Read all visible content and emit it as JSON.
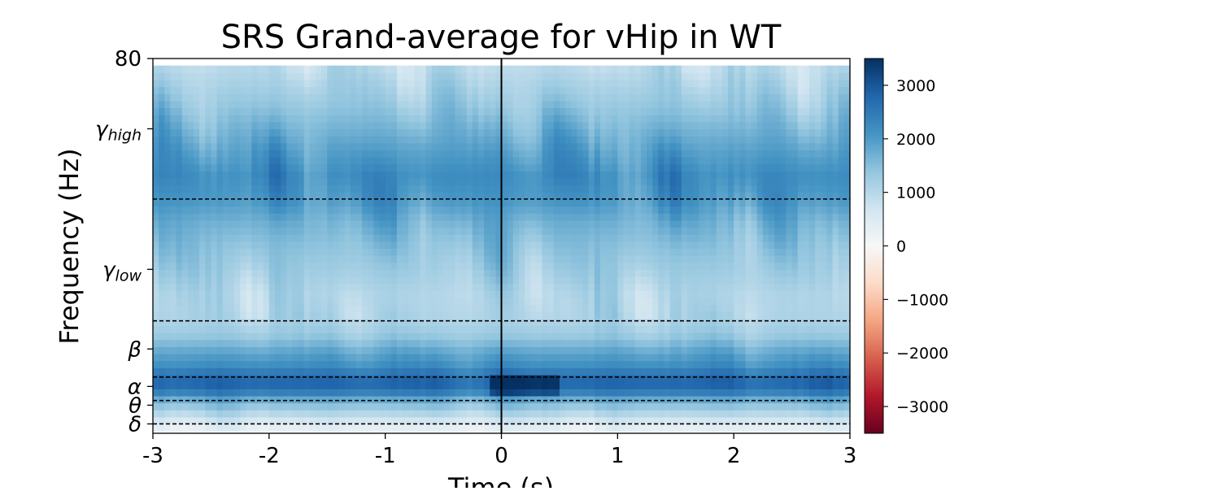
{
  "chart_data": {
    "type": "heatmap",
    "title": "SRS Grand-average for vHip in WT",
    "xlabel": "Time (s)",
    "ylabel": "Frequency (Hz)",
    "xlim": [
      -3,
      3
    ],
    "ylim": [
      0,
      80
    ],
    "x_ticks": [
      {
        "value": -3,
        "label": "-3"
      },
      {
        "value": -2,
        "label": "-2"
      },
      {
        "value": -1,
        "label": "-1"
      },
      {
        "value": 0,
        "label": "0"
      },
      {
        "value": 1,
        "label": "1"
      },
      {
        "value": 2,
        "label": "2"
      },
      {
        "value": 3,
        "label": "3"
      }
    ],
    "y_ticks": [
      {
        "value": 2,
        "label": "δ"
      },
      {
        "value": 6,
        "label": "θ"
      },
      {
        "value": 10,
        "label": "α"
      },
      {
        "value": 18,
        "label": "β",
        "sub": ""
      },
      {
        "value": 35,
        "label": "γ",
        "sub": "low"
      },
      {
        "value": 65,
        "label": "γ",
        "sub": "high"
      },
      {
        "value": 80,
        "label": "80"
      }
    ],
    "band_boundaries_hz": [
      2,
      7,
      12,
      24,
      50
    ],
    "event_time_s": 0,
    "colorbar": {
      "colormap": "RdBu",
      "vmin": -3500,
      "vmax": 3500,
      "ticks": [
        {
          "value": 3000,
          "label": "3000"
        },
        {
          "value": 2000,
          "label": "2000"
        },
        {
          "value": 1000,
          "label": "1000"
        },
        {
          "value": 0,
          "label": "0"
        },
        {
          "value": -1000,
          "label": "−1000"
        },
        {
          "value": -2000,
          "label": "−2000"
        },
        {
          "value": -3000,
          "label": "−3000"
        }
      ]
    },
    "frequency_profile": [
      {
        "hz": 1,
        "value": 300
      },
      {
        "hz": 3,
        "value": 700
      },
      {
        "hz": 5,
        "value": 1200
      },
      {
        "hz": 7,
        "value": 1700
      },
      {
        "hz": 9,
        "value": 2500
      },
      {
        "hz": 11,
        "value": 2900
      },
      {
        "hz": 13,
        "value": 2500
      },
      {
        "hz": 15,
        "value": 2100
      },
      {
        "hz": 17,
        "value": 1900
      },
      {
        "hz": 19,
        "value": 1600
      },
      {
        "hz": 21,
        "value": 1300
      },
      {
        "hz": 23,
        "value": 1150
      },
      {
        "hz": 26,
        "value": 1050
      },
      {
        "hz": 30,
        "value": 1050
      },
      {
        "hz": 35,
        "value": 1250
      },
      {
        "hz": 40,
        "value": 1450
      },
      {
        "hz": 45,
        "value": 1700
      },
      {
        "hz": 50,
        "value": 2050
      },
      {
        "hz": 55,
        "value": 2200
      },
      {
        "hz": 60,
        "value": 1950
      },
      {
        "hz": 65,
        "value": 1650
      },
      {
        "hz": 70,
        "value": 1350
      },
      {
        "hz": 75,
        "value": 1100
      },
      {
        "hz": 79,
        "value": 900
      }
    ],
    "grid": false
  }
}
